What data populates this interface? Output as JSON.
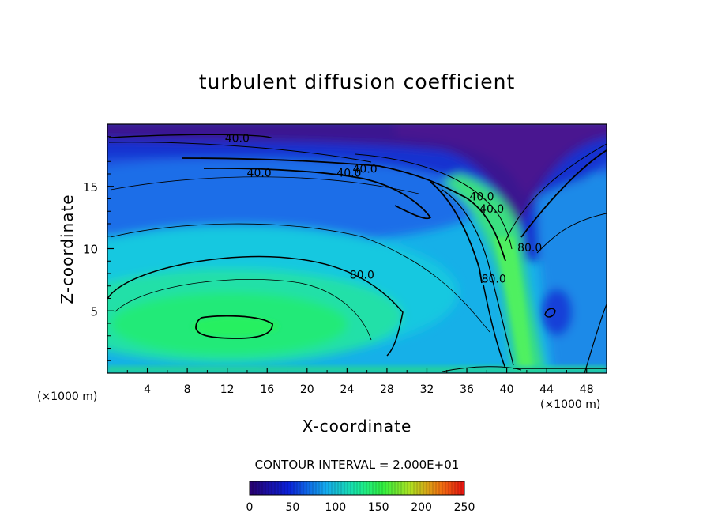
{
  "chart_data": {
    "type": "heatmap",
    "title": "turbulent diffusion coefficient",
    "xlabel": "X-coordinate",
    "ylabel": "Z-coordinate",
    "x_unit": "(×1000 m)",
    "x_unit_right": "(×1000 m)",
    "xlim": [
      0,
      50
    ],
    "ylim": [
      0,
      20
    ],
    "xticks": [
      4,
      8,
      12,
      16,
      20,
      24,
      28,
      32,
      36,
      40,
      44,
      48
    ],
    "yticks": [
      5,
      10,
      15
    ],
    "contour_interval_label": "CONTOUR INTERVAL = 2.000E+01",
    "contour_labels": [
      {
        "text": "40.0",
        "x": 13,
        "y": 18.9
      },
      {
        "text": "40.0",
        "x": 15.2,
        "y": 16.1
      },
      {
        "text": "40.0",
        "x": 24.2,
        "y": 16.1
      },
      {
        "text": "40.0",
        "x": 25.8,
        "y": 16.4
      },
      {
        "text": "40.0",
        "x": 37.5,
        "y": 14.2
      },
      {
        "text": "40.0",
        "x": 38.5,
        "y": 13.2
      },
      {
        "text": "80.0",
        "x": 25.5,
        "y": 7.9
      },
      {
        "text": "80.0",
        "x": 38.7,
        "y": 7.6
      },
      {
        "text": "80.0",
        "x": 42.3,
        "y": 10.1
      }
    ],
    "colorbar": {
      "ticks": [
        0,
        50,
        100,
        150,
        200,
        250
      ],
      "range": [
        0,
        250
      ]
    },
    "colors": {
      "low": "#2a0a6e",
      "mid": "#1a7be6",
      "high": "#10e860",
      "contour": "#000000"
    }
  }
}
